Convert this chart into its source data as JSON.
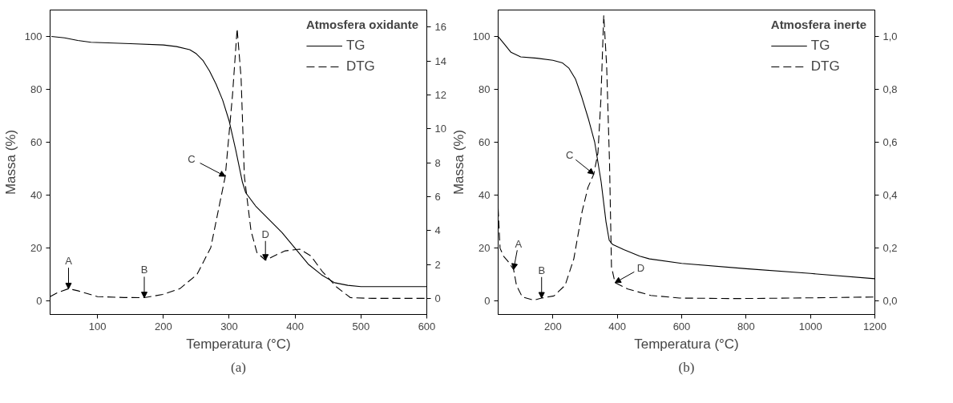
{
  "chart_data": [
    {
      "type": "line",
      "legend_title": "Atmosfera oxidante",
      "xlabel": "Temperatura (°C)",
      "ylabel": "Massa (%)",
      "xlim": [
        28,
        600
      ],
      "xticks": [
        100,
        200,
        300,
        400,
        500,
        600
      ],
      "ylim": [
        -5,
        110
      ],
      "yticks": [
        0,
        20,
        40,
        60,
        80,
        100
      ],
      "y2lim": [
        -0.95,
        17
      ],
      "y2ticks": [
        0,
        2,
        4,
        6,
        8,
        10,
        12,
        14,
        16
      ],
      "grid": false,
      "legend": "top right",
      "series": [
        {
          "name": "TG",
          "color": "#000000",
          "line_style": "solid",
          "x": [
            30,
            50,
            70,
            90,
            150,
            200,
            220,
            240,
            250,
            260,
            270,
            280,
            290,
            300,
            310,
            320,
            325,
            340,
            360,
            380,
            400,
            420,
            440,
            460,
            480,
            500,
            600
          ],
          "values": [
            100,
            99.5,
            98.5,
            97.8,
            97.3,
            96.8,
            96.2,
            95,
            93.5,
            91,
            87,
            82,
            76,
            68,
            57,
            45,
            41,
            36,
            31,
            26,
            20,
            14,
            10,
            7,
            6,
            5.5,
            5.5
          ]
        },
        {
          "name": "DTG",
          "color": "#000000",
          "line_style": "dashed",
          "axis": "y2",
          "x": [
            28,
            40,
            56,
            70,
            100,
            140,
            171,
            199,
            225,
            251,
            272,
            294,
            305,
            312,
            318,
            323,
            333,
            342,
            355,
            368,
            385,
            407,
            424,
            441,
            463,
            484,
            517,
            600
          ],
          "values": [
            0.1,
            0.35,
            0.57,
            0.45,
            0.1,
            0.05,
            0.04,
            0.23,
            0.57,
            1.4,
            3.0,
            7.2,
            12,
            15.9,
            13,
            7.2,
            4.0,
            2.7,
            2.25,
            2.5,
            2.8,
            2.9,
            2.5,
            1.6,
            0.67,
            0.04,
            0,
            0
          ]
        }
      ],
      "annotations": [
        {
          "text": "A",
          "x": 56,
          "y": 4.7
        },
        {
          "text": "B",
          "x": 171,
          "y": 1.3
        },
        {
          "text": "C",
          "x": 294,
          "y": 47.2
        },
        {
          "text": "D",
          "x": 355,
          "y": 15.5
        },
        "(a)"
      ]
    },
    {
      "type": "line",
      "legend_title": "Atmosfera inerte",
      "xlabel": "Temperatura (°C)",
      "ylabel": "Massa (%)",
      "xlim": [
        30,
        1200
      ],
      "xticks": [
        200,
        400,
        600,
        800,
        1000,
        1200
      ],
      "ylim": [
        -5,
        110
      ],
      "yticks": [
        0,
        20,
        40,
        60,
        80,
        100
      ],
      "y2lim": [
        -0.05,
        1.1
      ],
      "y2ticks": [
        {
          "value": 0,
          "label": "0,0"
        },
        {
          "value": 0.2,
          "label": "0,2"
        },
        {
          "value": 0.4,
          "label": "0,4"
        },
        {
          "value": 0.6,
          "label": "0,6"
        },
        {
          "value": 0.8,
          "label": "0,8"
        },
        {
          "value": 1.0,
          "label": "1,0"
        }
      ],
      "grid": false,
      "legend": "top right",
      "series": [
        {
          "name": "TG",
          "color": "#000000",
          "line_style": "solid",
          "x": [
            30,
            50,
            70,
            100,
            150,
            200,
            230,
            250,
            270,
            290,
            310,
            330,
            350,
            365,
            375,
            385,
            420,
            470,
            500,
            600,
            800,
            1000,
            1200
          ],
          "values": [
            100,
            97,
            94,
            92.3,
            91.8,
            91,
            90,
            88,
            84,
            77,
            69,
            60,
            45,
            30,
            23,
            21.5,
            19.5,
            17,
            16,
            14.3,
            12.3,
            10.5,
            8.5
          ]
        },
        {
          "name": "DTG",
          "color": "#000000",
          "line_style": "dashed",
          "axis": "y2",
          "x": [
            30,
            36,
            47,
            61,
            78,
            87,
            105,
            141,
            165,
            203,
            238,
            265,
            291,
            309,
            327,
            340,
            349,
            358,
            367,
            376,
            382,
            393,
            433,
            504,
            593,
            770,
            947,
            1200
          ],
          "values": [
            0.35,
            0.2,
            0.17,
            0.15,
            0.12,
            0.06,
            0.016,
            0.004,
            0.012,
            0.02,
            0.06,
            0.16,
            0.34,
            0.43,
            0.48,
            0.56,
            0.76,
            1.08,
            0.89,
            0.52,
            0.13,
            0.07,
            0.046,
            0.022,
            0.012,
            0.01,
            0.012,
            0.016
          ]
        }
      ],
      "annotations": [
        {
          "text": "A",
          "x": 78,
          "y": 12
        },
        {
          "text": "B",
          "x": 165,
          "y": 1.2
        },
        {
          "text": "C",
          "x": 327,
          "y": 48
        },
        {
          "text": "D",
          "x": 393,
          "y": 7
        },
        "(b)"
      ]
    }
  ]
}
